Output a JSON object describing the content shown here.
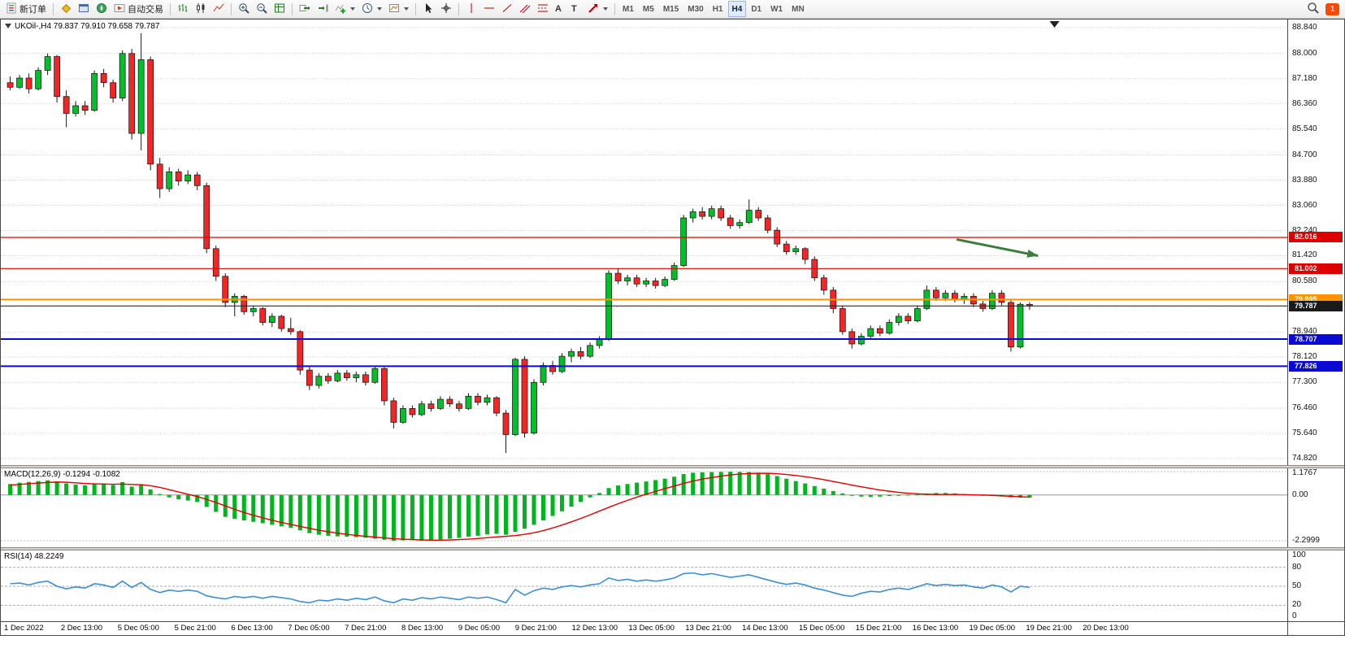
{
  "toolbar": {
    "new_order_label": "新订单",
    "auto_trading_label": "自动交易",
    "timeframes": [
      "M1",
      "M5",
      "M15",
      "M30",
      "H1",
      "H4",
      "D1",
      "W1",
      "MN"
    ],
    "active_timeframe": "H4",
    "text_tool_glyph": "A",
    "label_tool_glyph": "T",
    "notification_count": "1"
  },
  "chart": {
    "header": "UKOil-,H4 79.837 79.910 79.658 79.787",
    "symbol": "UKOil-",
    "period": "H4",
    "open": "79.837",
    "high": "79.910",
    "low": "79.658",
    "close": "79.787"
  },
  "chart_data": {
    "type": "candlestick",
    "symbol": "UKOil-",
    "timeframe": "H4",
    "colors": {
      "bull": "#00c02a",
      "bear": "#f42525",
      "wick": "#1a1a1a",
      "grid": "#c9c9c9"
    },
    "y_axis": {
      "max": 88.84,
      "min": 74.82,
      "ticks": [
        {
          "v": 88.84,
          "t": "88.840"
        },
        {
          "v": 88.0,
          "t": "88.000"
        },
        {
          "v": 87.18,
          "t": "87.180"
        },
        {
          "v": 86.36,
          "t": "86.360"
        },
        {
          "v": 85.54,
          "t": "85.540"
        },
        {
          "v": 84.7,
          "t": "84.700"
        },
        {
          "v": 83.88,
          "t": "83.880"
        },
        {
          "v": 83.06,
          "t": "83.060"
        },
        {
          "v": 82.24,
          "t": "82.240"
        },
        {
          "v": 81.42,
          "t": "81.420"
        },
        {
          "v": 80.58,
          "t": "80.580"
        },
        {
          "v": 79.76,
          "t": ""
        },
        {
          "v": 78.94,
          "t": "78.940"
        },
        {
          "v": 78.12,
          "t": "78.120"
        },
        {
          "v": 77.3,
          "t": "77.300"
        },
        {
          "v": 76.46,
          "t": "76.460"
        },
        {
          "v": 75.64,
          "t": "75.640"
        },
        {
          "v": 74.82,
          "t": "74.820"
        }
      ]
    },
    "x_labels": [
      "1 Dec 2022",
      "2 Dec 13:00",
      "5 Dec 05:00",
      "5 Dec 21:00",
      "6 Dec 13:00",
      "7 Dec 05:00",
      "7 Dec 21:00",
      "8 Dec 13:00",
      "9 Dec 05:00",
      "9 Dec 21:00",
      "12 Dec 13:00",
      "13 Dec 05:00",
      "13 Dec 21:00",
      "14 Dec 13:00",
      "15 Dec 05:00",
      "15 Dec 21:00",
      "16 Dec 13:00",
      "19 Dec 05:00",
      "19 Dec 21:00",
      "20 Dec 13:00"
    ],
    "candles": [
      [
        87.05,
        87.25,
        86.8,
        86.9
      ],
      [
        86.9,
        87.3,
        86.85,
        87.2
      ],
      [
        87.2,
        87.35,
        86.7,
        86.85
      ],
      [
        86.85,
        87.55,
        86.8,
        87.45
      ],
      [
        87.45,
        88.0,
        87.3,
        87.9
      ],
      [
        87.9,
        87.95,
        86.4,
        86.6
      ],
      [
        86.6,
        86.8,
        85.6,
        86.05
      ],
      [
        86.05,
        86.45,
        85.95,
        86.3
      ],
      [
        86.3,
        86.45,
        86.0,
        86.15
      ],
      [
        86.15,
        87.45,
        86.1,
        87.35
      ],
      [
        87.35,
        87.5,
        86.9,
        87.05
      ],
      [
        87.05,
        87.15,
        86.4,
        86.55
      ],
      [
        86.55,
        88.1,
        86.45,
        88.0
      ],
      [
        88.0,
        88.15,
        85.2,
        85.4
      ],
      [
        85.4,
        88.66,
        84.85,
        87.8
      ],
      [
        87.8,
        87.9,
        84.2,
        84.4
      ],
      [
        84.4,
        84.6,
        83.3,
        83.6
      ],
      [
        83.6,
        84.3,
        83.5,
        84.15
      ],
      [
        84.15,
        84.25,
        83.7,
        83.85
      ],
      [
        83.85,
        84.2,
        83.75,
        84.05
      ],
      [
        84.05,
        84.15,
        83.55,
        83.7
      ],
      [
        83.7,
        83.8,
        81.5,
        81.65
      ],
      [
        81.65,
        81.75,
        80.6,
        80.75
      ],
      [
        80.75,
        80.85,
        79.75,
        79.9
      ],
      [
        79.9,
        80.2,
        79.45,
        80.1
      ],
      [
        80.1,
        80.15,
        79.5,
        79.6
      ],
      [
        79.6,
        79.8,
        79.45,
        79.7
      ],
      [
        79.7,
        79.75,
        79.15,
        79.25
      ],
      [
        79.25,
        79.55,
        79.1,
        79.45
      ],
      [
        79.45,
        79.5,
        78.95,
        79.05
      ],
      [
        79.05,
        79.4,
        78.85,
        78.95
      ],
      [
        78.95,
        79.0,
        77.55,
        77.7
      ],
      [
        77.7,
        77.8,
        77.05,
        77.2
      ],
      [
        77.2,
        77.6,
        77.1,
        77.5
      ],
      [
        77.5,
        77.6,
        77.25,
        77.35
      ],
      [
        77.35,
        77.7,
        77.3,
        77.6
      ],
      [
        77.6,
        77.7,
        77.35,
        77.45
      ],
      [
        77.45,
        77.65,
        77.3,
        77.55
      ],
      [
        77.55,
        77.65,
        77.2,
        77.3
      ],
      [
        77.3,
        77.85,
        77.25,
        77.75
      ],
      [
        77.75,
        77.8,
        76.55,
        76.7
      ],
      [
        76.7,
        76.8,
        75.8,
        76.0
      ],
      [
        76.0,
        76.55,
        75.95,
        76.45
      ],
      [
        76.45,
        76.55,
        76.15,
        76.25
      ],
      [
        76.25,
        76.7,
        76.2,
        76.6
      ],
      [
        76.6,
        76.7,
        76.35,
        76.45
      ],
      [
        76.45,
        76.85,
        76.4,
        76.75
      ],
      [
        76.75,
        76.85,
        76.5,
        76.6
      ],
      [
        76.6,
        76.7,
        76.35,
        76.45
      ],
      [
        76.45,
        76.95,
        76.4,
        76.85
      ],
      [
        76.85,
        76.95,
        76.55,
        76.65
      ],
      [
        76.65,
        76.9,
        76.55,
        76.8
      ],
      [
        76.8,
        76.85,
        76.2,
        76.3
      ],
      [
        76.3,
        76.4,
        75.0,
        75.6
      ],
      [
        75.6,
        78.1,
        75.55,
        78.05
      ],
      [
        78.05,
        78.15,
        75.5,
        75.65
      ],
      [
        75.65,
        77.4,
        75.6,
        77.3
      ],
      [
        77.3,
        77.95,
        77.2,
        77.85
      ],
      [
        77.85,
        78.0,
        77.55,
        77.65
      ],
      [
        77.65,
        78.25,
        77.6,
        78.15
      ],
      [
        78.15,
        78.4,
        77.95,
        78.3
      ],
      [
        78.3,
        78.45,
        78.05,
        78.15
      ],
      [
        78.15,
        78.6,
        78.1,
        78.5
      ],
      [
        78.5,
        78.8,
        78.4,
        78.7
      ],
      [
        78.7,
        80.95,
        78.65,
        80.85
      ],
      [
        80.85,
        81.0,
        80.5,
        80.6
      ],
      [
        80.6,
        80.8,
        80.45,
        80.7
      ],
      [
        80.7,
        80.8,
        80.4,
        80.5
      ],
      [
        80.5,
        80.7,
        80.4,
        80.6
      ],
      [
        80.6,
        80.7,
        80.35,
        80.45
      ],
      [
        80.45,
        80.75,
        80.4,
        80.65
      ],
      [
        80.65,
        81.2,
        80.6,
        81.1
      ],
      [
        81.1,
        82.75,
        81.05,
        82.65
      ],
      [
        82.65,
        82.95,
        82.5,
        82.85
      ],
      [
        82.85,
        83.0,
        82.6,
        82.7
      ],
      [
        82.7,
        83.05,
        82.6,
        82.95
      ],
      [
        82.95,
        83.05,
        82.55,
        82.65
      ],
      [
        82.65,
        82.75,
        82.3,
        82.4
      ],
      [
        82.4,
        82.6,
        82.3,
        82.5
      ],
      [
        82.5,
        83.25,
        82.45,
        82.9
      ],
      [
        82.9,
        83.0,
        82.55,
        82.65
      ],
      [
        82.65,
        82.75,
        82.15,
        82.25
      ],
      [
        82.25,
        82.35,
        81.7,
        81.8
      ],
      [
        81.8,
        81.9,
        81.45,
        81.55
      ],
      [
        81.55,
        81.75,
        81.45,
        81.65
      ],
      [
        81.65,
        81.7,
        81.15,
        81.3
      ],
      [
        81.3,
        81.4,
        80.6,
        80.7
      ],
      [
        80.7,
        80.8,
        80.15,
        80.3
      ],
      [
        80.3,
        80.4,
        79.55,
        79.7
      ],
      [
        79.7,
        79.8,
        78.85,
        78.95
      ],
      [
        78.95,
        79.05,
        78.4,
        78.55
      ],
      [
        78.55,
        78.9,
        78.5,
        78.8
      ],
      [
        78.8,
        79.15,
        78.7,
        79.05
      ],
      [
        79.05,
        79.15,
        78.8,
        78.9
      ],
      [
        78.9,
        79.35,
        78.85,
        79.25
      ],
      [
        79.25,
        79.55,
        79.15,
        79.45
      ],
      [
        79.45,
        79.55,
        79.2,
        79.3
      ],
      [
        79.3,
        79.8,
        79.25,
        79.7
      ],
      [
        79.7,
        80.45,
        79.65,
        80.3
      ],
      [
        80.3,
        80.4,
        79.95,
        80.05
      ],
      [
        80.05,
        80.3,
        79.95,
        80.2
      ],
      [
        80.2,
        80.3,
        79.9,
        80.0
      ],
      [
        80.0,
        80.2,
        79.85,
        80.1
      ],
      [
        80.1,
        80.2,
        79.75,
        79.85
      ],
      [
        79.85,
        79.95,
        79.6,
        79.7
      ],
      [
        79.7,
        80.3,
        79.65,
        80.2
      ],
      [
        80.2,
        80.3,
        79.8,
        79.9
      ],
      [
        79.9,
        80.0,
        78.3,
        78.45
      ],
      [
        78.45,
        79.9,
        78.4,
        79.84
      ],
      [
        79.837,
        79.91,
        79.658,
        79.787
      ]
    ],
    "hlines": [
      {
        "price": 82.016,
        "color": "#dc0000",
        "width": 1.2,
        "label": "82.016"
      },
      {
        "price": 81.002,
        "color": "#dc0000",
        "width": 1.2,
        "label": "81.002"
      },
      {
        "price": 79.995,
        "color": "#ff9400",
        "width": 2,
        "label": "79.995"
      },
      {
        "price": 79.787,
        "color": "#1a1a1a",
        "width": 1,
        "label": "79.787"
      },
      {
        "price": 78.707,
        "color": "#0a0ad2",
        "width": 2,
        "label": "78.707"
      },
      {
        "price": 77.826,
        "color": "#0a0ad2",
        "width": 2,
        "label": "77.826"
      }
    ],
    "arrow": {
      "i1": 101.5,
      "p1": 81.95,
      "i2": 110.2,
      "p2": 81.42,
      "color": "#3a7d3a"
    },
    "macd": {
      "label": "MACD(12,26,9) -0.1294 -0.1082",
      "max": 1.1767,
      "min": -2.2999,
      "ticks": [
        {
          "v": 1.1767,
          "t": "1.1767"
        },
        {
          "v": 0,
          "t": "0.00"
        },
        {
          "v": -2.2999,
          "t": "-2.2999"
        }
      ],
      "hist_color": "#00b51e",
      "signal_color": "#e00000",
      "histogram": [
        0.55,
        0.62,
        0.66,
        0.7,
        0.74,
        0.68,
        0.58,
        0.52,
        0.48,
        0.55,
        0.58,
        0.5,
        0.65,
        0.42,
        0.52,
        0.28,
        0.05,
        -0.12,
        -0.22,
        -0.28,
        -0.35,
        -0.6,
        -0.85,
        -1.1,
        -1.2,
        -1.28,
        -1.35,
        -1.42,
        -1.5,
        -1.58,
        -1.65,
        -1.78,
        -1.92,
        -2.0,
        -2.05,
        -2.08,
        -2.1,
        -2.12,
        -2.15,
        -2.2,
        -2.25,
        -2.3,
        -2.28,
        -2.26,
        -2.3,
        -2.28,
        -2.24,
        -2.2,
        -2.16,
        -2.1,
        -2.05,
        -1.98,
        -1.95,
        -2.0,
        -1.85,
        -1.7,
        -1.5,
        -1.28,
        -1.05,
        -0.82,
        -0.58,
        -0.35,
        -0.12,
        0.1,
        0.35,
        0.48,
        0.55,
        0.62,
        0.68,
        0.75,
        0.82,
        0.92,
        1.05,
        1.12,
        1.14,
        1.15,
        1.16,
        1.17,
        1.16,
        1.15,
        1.12,
        1.05,
        0.95,
        0.82,
        0.7,
        0.58,
        0.45,
        0.32,
        0.2,
        0.08,
        -0.02,
        -0.08,
        -0.1,
        -0.08,
        -0.05,
        -0.02,
        0.02,
        0.05,
        0.08,
        0.1,
        0.1,
        0.08,
        0.05,
        0.02,
        -0.02,
        -0.05,
        -0.08,
        -0.12,
        -0.13,
        -0.1294
      ],
      "signal": [
        0.5,
        0.53,
        0.57,
        0.6,
        0.63,
        0.65,
        0.64,
        0.61,
        0.58,
        0.56,
        0.55,
        0.54,
        0.55,
        0.53,
        0.52,
        0.47,
        0.38,
        0.27,
        0.15,
        0.04,
        -0.08,
        -0.22,
        -0.38,
        -0.55,
        -0.72,
        -0.88,
        -1.02,
        -1.15,
        -1.27,
        -1.38,
        -1.48,
        -1.58,
        -1.68,
        -1.77,
        -1.85,
        -1.92,
        -1.98,
        -2.03,
        -2.08,
        -2.12,
        -2.16,
        -2.2,
        -2.22,
        -2.24,
        -2.26,
        -2.27,
        -2.27,
        -2.26,
        -2.24,
        -2.22,
        -2.19,
        -2.15,
        -2.11,
        -2.08,
        -2.04,
        -1.98,
        -1.9,
        -1.79,
        -1.66,
        -1.51,
        -1.35,
        -1.18,
        -1.0,
        -0.81,
        -0.62,
        -0.44,
        -0.27,
        -0.11,
        0.04,
        0.18,
        0.32,
        0.45,
        0.58,
        0.7,
        0.8,
        0.88,
        0.95,
        1.01,
        1.05,
        1.08,
        1.09,
        1.09,
        1.07,
        1.03,
        0.98,
        0.92,
        0.85,
        0.77,
        0.68,
        0.59,
        0.5,
        0.41,
        0.33,
        0.25,
        0.19,
        0.13,
        0.09,
        0.06,
        0.04,
        0.03,
        0.03,
        0.03,
        0.02,
        0.01,
        0.0,
        -0.02,
        -0.04,
        -0.07,
        -0.09,
        -0.1082
      ]
    },
    "rsi": {
      "label": "RSI(14) 48.2249",
      "color": "#3d8fd1",
      "ticks": [
        {
          "v": 100,
          "t": "100"
        },
        {
          "v": 80,
          "t": "80"
        },
        {
          "v": 50,
          "t": "50"
        },
        {
          "v": 20,
          "t": "20"
        },
        {
          "v": 0,
          "t": "0"
        }
      ],
      "levels": [
        80,
        50,
        20
      ],
      "values": [
        54,
        55,
        52,
        56,
        58,
        50,
        46,
        49,
        47,
        54,
        52,
        48,
        58,
        48,
        56,
        45,
        40,
        44,
        42,
        44,
        42,
        35,
        32,
        30,
        34,
        32,
        34,
        31,
        34,
        32,
        30,
        26,
        24,
        28,
        27,
        30,
        28,
        31,
        29,
        33,
        27,
        24,
        30,
        28,
        32,
        30,
        33,
        31,
        29,
        33,
        31,
        33,
        29,
        24,
        45,
        36,
        43,
        47,
        45,
        49,
        51,
        49,
        52,
        54,
        63,
        59,
        61,
        58,
        60,
        58,
        60,
        63,
        70,
        71,
        68,
        70,
        67,
        64,
        66,
        68,
        64,
        60,
        56,
        53,
        55,
        52,
        47,
        44,
        40,
        36,
        34,
        39,
        42,
        41,
        45,
        47,
        45,
        49,
        54,
        51,
        53,
        51,
        52,
        49,
        47,
        52,
        49,
        41,
        50,
        48.22
      ]
    }
  }
}
